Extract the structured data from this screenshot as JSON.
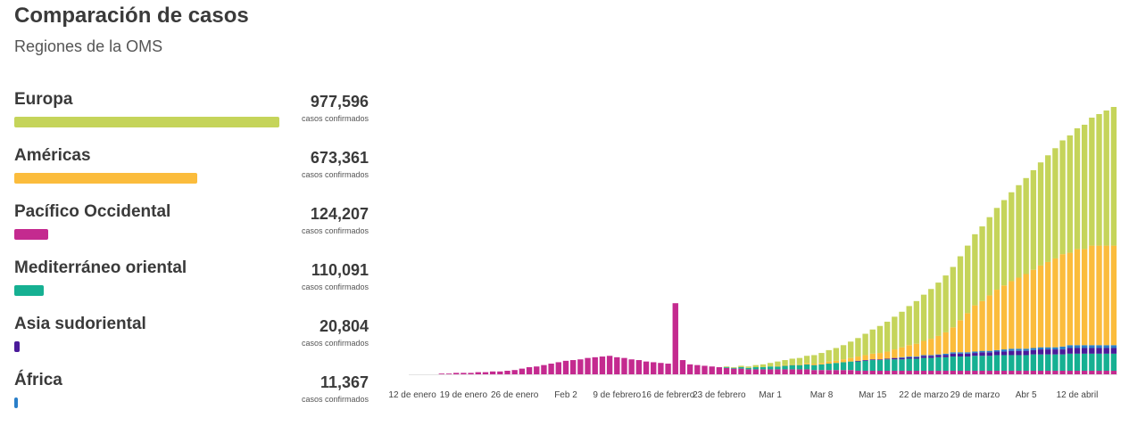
{
  "header": {
    "title": "Comparación de casos",
    "subtitle": "Regiones de la OMS"
  },
  "regions": [
    {
      "name": "Europa",
      "value": "977,596",
      "cases": 977596,
      "unit": "casos confirmados",
      "color": "#c5d45a"
    },
    {
      "name": "Américas",
      "value": "673,361",
      "cases": 673361,
      "unit": "casos confirmados",
      "color": "#fbbc3c"
    },
    {
      "name": "Pacífico Occidental",
      "value": "124,207",
      "cases": 124207,
      "unit": "casos confirmados",
      "color": "#c42a8f"
    },
    {
      "name": "Mediterráneo oriental",
      "value": "110,091",
      "cases": 110091,
      "unit": "casos confirmados",
      "color": "#16b092"
    },
    {
      "name": "Asia sudoriental",
      "value": "20,804",
      "cases": 20804,
      "unit": "casos confirmados",
      "color": "#4a1a9a"
    },
    {
      "name": "África",
      "value": "11,367",
      "cases": 11367,
      "unit": "casos confirmados",
      "color": "#2a7fc9"
    }
  ],
  "chart_data": {
    "type": "bar",
    "stacked": true,
    "title": "",
    "xlabel": "",
    "ylabel": "",
    "tick_labels": [
      "12 de enero",
      "19 de enero",
      "26 de enero",
      "Feb 2",
      "9 de febrero",
      "16 de febrero",
      "23 de febrero",
      "Mar 1",
      "Mar 8",
      "Mar 15",
      "22 de marzo",
      "29 de marzo",
      "Abr 5",
      "12 de abril"
    ],
    "tick_day_index": [
      0,
      7,
      14,
      21,
      28,
      35,
      42,
      49,
      56,
      63,
      70,
      77,
      84,
      91
    ],
    "start_day": "12 de enero",
    "num_days": 97,
    "series": [
      {
        "name": "Pacífico Occidental",
        "color": "#c42a8f",
        "values": [
          0,
          0,
          0,
          0,
          1,
          1,
          2,
          2,
          2,
          3,
          3,
          4,
          4,
          5,
          6,
          8,
          10,
          11,
          13,
          15,
          17,
          19,
          20,
          21,
          23,
          24,
          25,
          26,
          24,
          23,
          21,
          20,
          18,
          17,
          16,
          15,
          100,
          20,
          14,
          13,
          12,
          11,
          10,
          9,
          8,
          8,
          7,
          7,
          7,
          7,
          7,
          7,
          7,
          7,
          7,
          6,
          6,
          6,
          6,
          6,
          6,
          5,
          5,
          5,
          5,
          5,
          5,
          5,
          5,
          5,
          5,
          5,
          5,
          5,
          5,
          5,
          5,
          5,
          5,
          5,
          5,
          5,
          5,
          5,
          5,
          5,
          5,
          5,
          5,
          5,
          5,
          5,
          5,
          5,
          5,
          5,
          5
        ]
      },
      {
        "name": "Mediterráneo oriental",
        "color": "#16b092",
        "values": [
          0,
          0,
          0,
          0,
          0,
          0,
          0,
          0,
          0,
          0,
          0,
          0,
          0,
          0,
          0,
          0,
          0,
          0,
          0,
          0,
          0,
          0,
          0,
          0,
          0,
          0,
          0,
          0,
          0,
          0,
          0,
          0,
          0,
          0,
          0,
          0,
          0,
          0,
          0,
          0,
          0,
          0,
          0,
          1,
          1,
          2,
          2,
          3,
          3,
          4,
          4,
          5,
          6,
          6,
          7,
          7,
          8,
          9,
          10,
          11,
          12,
          13,
          14,
          15,
          15,
          16,
          16,
          16,
          17,
          17,
          18,
          18,
          19,
          19,
          20,
          20,
          20,
          21,
          21,
          21,
          22,
          22,
          22,
          22,
          22,
          23,
          23,
          23,
          23,
          23,
          24,
          24,
          24,
          24,
          24,
          24,
          24
        ]
      },
      {
        "name": "Asia sudoriental",
        "color": "#4a1a9a",
        "values": [
          0,
          0,
          0,
          0,
          0,
          0,
          0,
          0,
          0,
          0,
          0,
          0,
          0,
          0,
          0,
          0,
          0,
          0,
          0,
          0,
          0,
          0,
          0,
          0,
          0,
          0,
          0,
          0,
          0,
          0,
          0,
          0,
          0,
          0,
          0,
          0,
          0,
          0,
          0,
          0,
          0,
          0,
          0,
          0,
          0,
          0,
          0,
          0,
          0,
          0,
          0,
          0,
          0,
          0,
          0,
          0,
          0,
          0,
          0,
          0,
          0,
          1,
          1,
          1,
          1,
          1,
          2,
          2,
          2,
          2,
          3,
          3,
          3,
          3,
          4,
          4,
          4,
          4,
          5,
          5,
          5,
          5,
          6,
          6,
          6,
          6,
          7,
          7,
          7,
          7,
          8,
          8,
          8,
          8,
          8,
          8,
          8
        ]
      },
      {
        "name": "África",
        "color": "#2a7fc9",
        "values": [
          0,
          0,
          0,
          0,
          0,
          0,
          0,
          0,
          0,
          0,
          0,
          0,
          0,
          0,
          0,
          0,
          0,
          0,
          0,
          0,
          0,
          0,
          0,
          0,
          0,
          0,
          0,
          0,
          0,
          0,
          0,
          0,
          0,
          0,
          0,
          0,
          0,
          0,
          0,
          0,
          0,
          0,
          0,
          0,
          0,
          0,
          0,
          0,
          0,
          0,
          0,
          0,
          0,
          0,
          0,
          0,
          0,
          0,
          0,
          0,
          0,
          0,
          0,
          0,
          0,
          0,
          0,
          1,
          1,
          1,
          1,
          1,
          1,
          2,
          2,
          2,
          2,
          2,
          2,
          2,
          2,
          3,
          3,
          3,
          3,
          3,
          3,
          3,
          3,
          4,
          4,
          4,
          4,
          4,
          4,
          4,
          4
        ]
      },
      {
        "name": "Américas",
        "color": "#fbbc3c",
        "values": [
          0,
          0,
          0,
          0,
          0,
          0,
          0,
          0,
          0,
          0,
          0,
          0,
          0,
          0,
          0,
          0,
          0,
          0,
          0,
          0,
          0,
          0,
          0,
          0,
          0,
          0,
          0,
          0,
          0,
          0,
          0,
          0,
          0,
          0,
          0,
          0,
          0,
          0,
          0,
          0,
          0,
          0,
          0,
          0,
          0,
          0,
          0,
          0,
          0,
          0,
          1,
          1,
          1,
          1,
          2,
          2,
          2,
          3,
          3,
          4,
          5,
          6,
          7,
          8,
          9,
          10,
          12,
          14,
          16,
          18,
          20,
          23,
          26,
          30,
          35,
          45,
          55,
          65,
          70,
          78,
          85,
          90,
          95,
          100,
          105,
          110,
          115,
          120,
          125,
          130,
          130,
          135,
          135,
          140,
          140,
          140,
          140
        ]
      },
      {
        "name": "Europa",
        "color": "#c5d45a",
        "values": [
          0,
          0,
          0,
          0,
          0,
          0,
          0,
          0,
          0,
          0,
          0,
          0,
          0,
          0,
          0,
          0,
          0,
          0,
          0,
          0,
          0,
          0,
          0,
          0,
          0,
          0,
          0,
          0,
          0,
          0,
          0,
          0,
          0,
          0,
          0,
          0,
          0,
          0,
          0,
          0,
          0,
          0,
          0,
          1,
          1,
          2,
          2,
          3,
          4,
          5,
          6,
          7,
          8,
          9,
          10,
          12,
          14,
          16,
          18,
          20,
          23,
          26,
          30,
          34,
          38,
          42,
          46,
          50,
          55,
          60,
          65,
          70,
          75,
          80,
          85,
          90,
          95,
          100,
          105,
          110,
          115,
          120,
          125,
          130,
          135,
          140,
          145,
          150,
          155,
          160,
          165,
          170,
          175,
          180,
          185,
          190,
          195
        ]
      }
    ]
  }
}
